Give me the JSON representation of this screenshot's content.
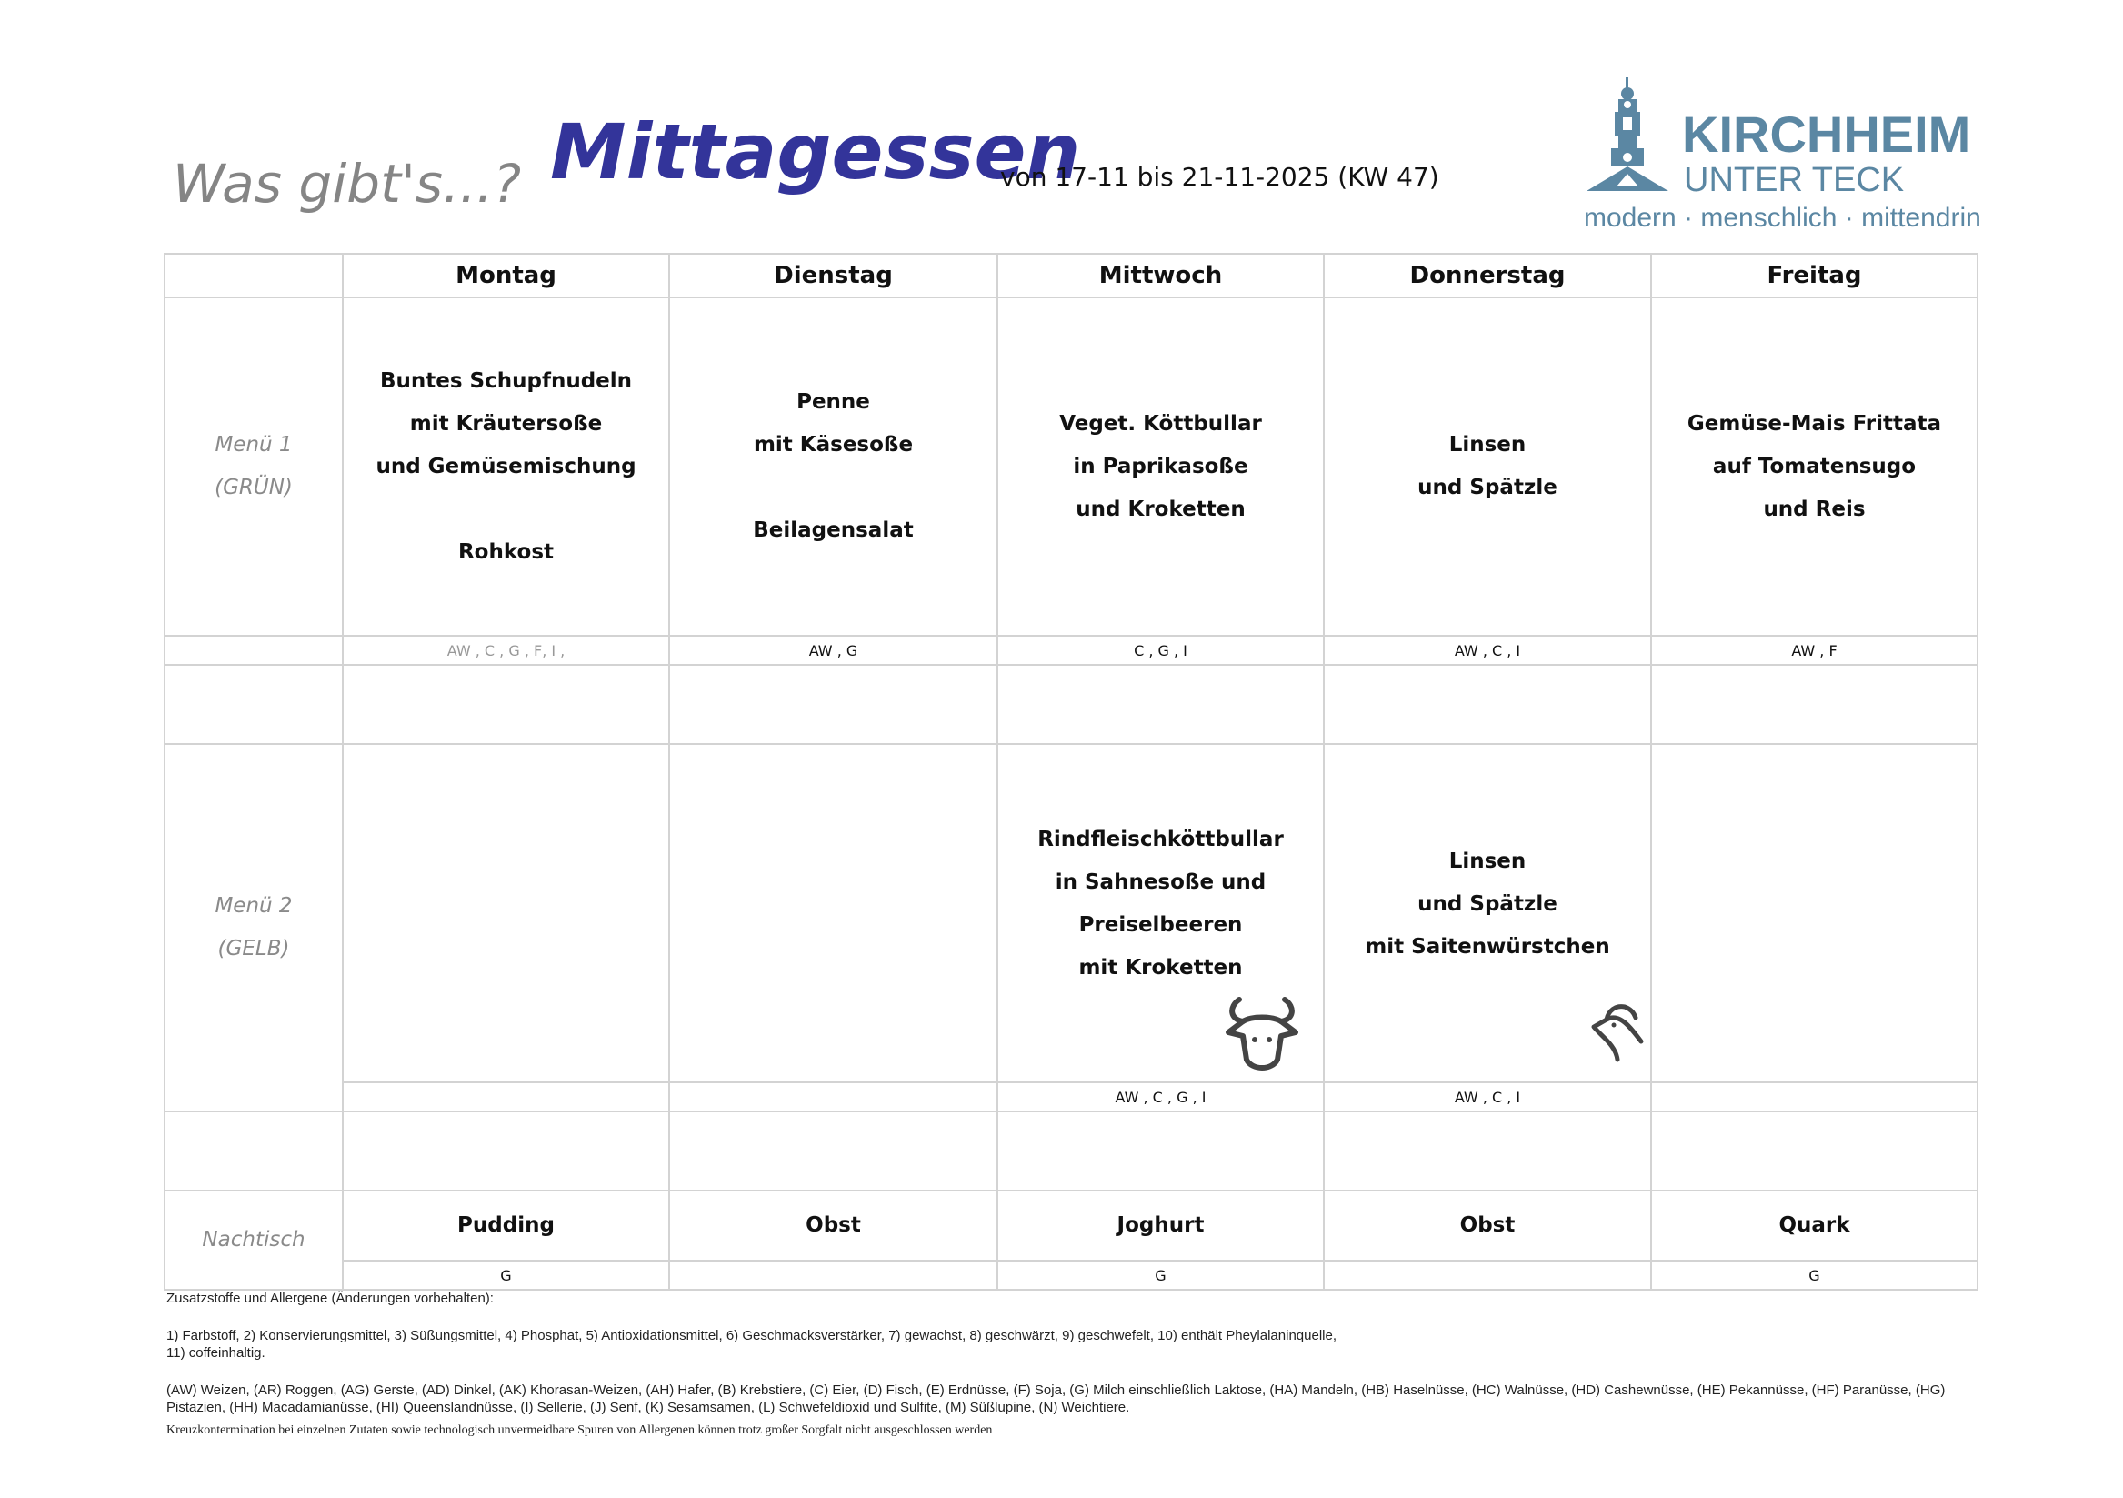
{
  "header": {
    "tagline": "Was gibt's...?",
    "title": "Mittagessen",
    "date_range": "von 17-11 bis 21-11-2025 (KW 47)",
    "logo": {
      "name": "KIRCHHEIM",
      "sub": "UNTER TECK",
      "tagline": "modern · menschlich · mittendrin",
      "color": "#5b87a3"
    }
  },
  "days": [
    "Montag",
    "Dienstag",
    "Mittwoch",
    "Donnerstag",
    "Freitag"
  ],
  "menu1": {
    "label": [
      "Menü 1",
      "(GRÜN)"
    ],
    "dishes": [
      "Buntes Schupfnudeln\nmit Kräutersoße\nund Gemüsemischung\n\nRohkost",
      "Penne\nmit Käsesoße\n\nBeilagensalat",
      "Veget. Köttbullar\nin Paprikasoße\nund Kroketten",
      "Linsen\nund Spätzle",
      "Gemüse-Mais Frittata\nauf Tomatensugo\nund Reis"
    ],
    "allergens": [
      "AW , C , G , F, I ,",
      "AW , G",
      "C , G , I",
      "AW , C , I",
      "AW , F"
    ]
  },
  "menu2": {
    "label": [
      "Menü 2",
      "(GELB)"
    ],
    "dishes": [
      "",
      "",
      "Rindfleischköttbullar\nin Sahnesoße und\nPreiselbeeren\nmit Kroketten",
      "Linsen\nund Spätzle\nmit Saitenwürstchen",
      ""
    ],
    "icons": [
      "",
      "",
      "cow-icon",
      "chicken-icon",
      ""
    ],
    "allergens": [
      "",
      "",
      "AW , C , G , I",
      "AW , C , I",
      ""
    ]
  },
  "dessert": {
    "label": "Nachtisch",
    "items": [
      "Pudding",
      "Obst",
      "Joghurt",
      "Obst",
      "Quark"
    ],
    "allergens": [
      "G",
      "",
      "G",
      "",
      "G"
    ]
  },
  "footnotes": {
    "heading": "Zusatzstoffe und Allergene (Änderungen vorbehalten):",
    "additives": [
      "1) Farbstoff, 2) Konservierungsmittel, 3) Süßungsmittel, 4) Phosphat, 5) Antioxidationsmittel, 6) Geschmacksverstärker, 7) gewachst, 8) geschwärzt, 9) geschwefelt, 10) enthält Pheylalaninquelle,",
      "11) coffeinhaltig."
    ],
    "allergens": "(AW) Weizen, (AR) Roggen, (AG) Gerste, (AD) Dinkel, (AK) Khorasan-Weizen, (AH) Hafer, (B) Krebstiere, (C) Eier, (D) Fisch, (E) Erdnüsse, (F) Soja, (G) Milch einschließlich Laktose, (HA) Mandeln, (HB) Haselnüsse, (HC) Walnüsse, (HD) Cashewnüsse, (HE) Pekannüsse, (HF) Paranüsse, (HG) Pistazien, (HH) Macadamianüsse, (HI) Queenslandnüsse, (I) Sellerie, (J) Senf, (K) Sesamsamen, (L) Schwefeldioxid und Sulfite, (M) Süßlupine, (N) Weichtiere.",
    "disclaimer": "Kreuzkontermination bei einzelnen Zutaten sowie technologisch unvermeidbare Spuren von Allergenen können trotz großer Sorgfalt nicht ausgeschlossen werden"
  }
}
